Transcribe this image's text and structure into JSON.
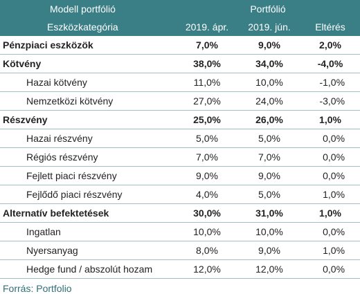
{
  "header": {
    "model_portfolio": "Modell portfólió",
    "portfolio": "Portfólió",
    "asset_category": "Eszközkategória",
    "col_apr": "2019. ápr.",
    "col_jun": "2019. jún.",
    "col_diff": "Eltérés"
  },
  "rows": [
    {
      "label": "Pénzpiaci eszközök",
      "apr": "7,0%",
      "jun": "9,0%",
      "diff": "2,0%",
      "group": true
    },
    {
      "label": "Kötvény",
      "apr": "38,0%",
      "jun": "34,0%",
      "diff": "-4,0%",
      "group": true
    },
    {
      "label": "Hazai kötvény",
      "apr": "11,0%",
      "jun": "10,0%",
      "diff": "-1,0%",
      "group": false
    },
    {
      "label": "Nemzetközi kötvény",
      "apr": "27,0%",
      "jun": "24,0%",
      "diff": "-3,0%",
      "group": false
    },
    {
      "label": "Részvény",
      "apr": "25,0%",
      "jun": "26,0%",
      "diff": "1,0%",
      "group": true
    },
    {
      "label": "Hazai részvény",
      "apr": "5,0%",
      "jun": "5,0%",
      "diff": "0,0%",
      "group": false
    },
    {
      "label": "Régiós részvény",
      "apr": "7,0%",
      "jun": "7,0%",
      "diff": "0,0%",
      "group": false
    },
    {
      "label": "Fejlett piaci részvény",
      "apr": "9,0%",
      "jun": "9,0%",
      "diff": "0,0%",
      "group": false
    },
    {
      "label": "Fejlődő piaci részvény",
      "apr": "4,0%",
      "jun": "5,0%",
      "diff": "1,0%",
      "group": false
    },
    {
      "label": "Alternatív befektetések",
      "apr": "30,0%",
      "jun": "31,0%",
      "diff": "1,0%",
      "group": true
    },
    {
      "label": "Ingatlan",
      "apr": "10,0%",
      "jun": "10,0%",
      "diff": "0,0%",
      "group": false
    },
    {
      "label": "Nyersanyag",
      "apr": "8,0%",
      "jun": "9,0%",
      "diff": "1,0%",
      "group": false
    },
    {
      "label": "Hedge fund / abszolút hozam",
      "apr": "12,0%",
      "jun": "12,0%",
      "diff": "0,0%",
      "group": false
    }
  ],
  "source": "Forrás: Portfolio",
  "colors": {
    "header_bg": "#3a7f86",
    "source_text": "#2f6f77"
  }
}
